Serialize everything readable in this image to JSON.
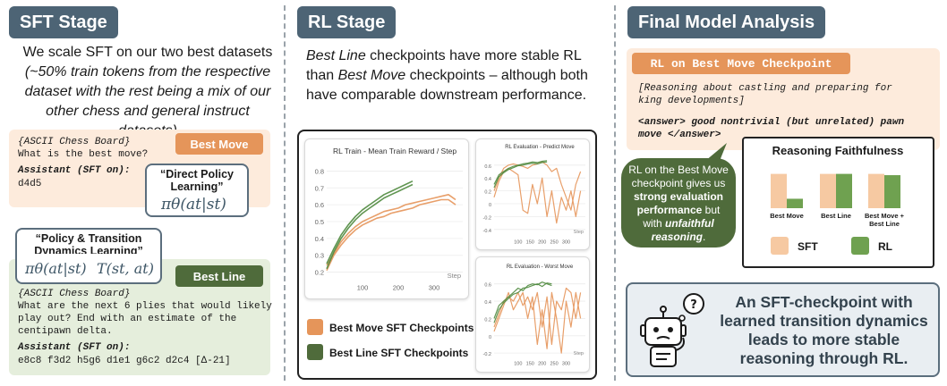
{
  "sft": {
    "header": "SFT Stage",
    "intro_line1": "We scale SFT on our two best datasets",
    "intro_line2": "(~50% train tokens from the respective",
    "intro_line3": "dataset with the rest being a mix of our",
    "intro_line4": "other chess and general instruct datasets)",
    "best_move_card": {
      "tag": "Best Move",
      "line1": "{ASCII Chess Board}",
      "line2": "What is the best move?",
      "assistant": "Assistant (SFT on):",
      "answer": "d4d5"
    },
    "policy_box": {
      "title_line1": "“Direct Policy",
      "title_line2": "Learning”",
      "formula": "πθ(at|st)"
    },
    "dynamics_box": {
      "title_line1": "“Policy & Transition",
      "title_line2": "Dynamics Learning”",
      "formula1": "πθ(at|st)",
      "formula2": "T(st, at)"
    },
    "best_line_card": {
      "tag": "Best Line",
      "line1": "{ASCII Chess Board}",
      "line2": "What are the next 6 plies that would likely",
      "line3": "play out? End with an estimate of the",
      "line4": "centipawn delta.",
      "assistant": "Assistant (SFT on):",
      "answer": "e8c8 f3d2 h5g6 d1e1 g6c2 d2c4 [Δ-21]"
    }
  },
  "rl": {
    "header": "RL Stage",
    "text_em1": "Best Line",
    "text_part1": " checkpoints have more stable RL",
    "text_part2": "than ",
    "text_em2": "Best Move",
    "text_part3": " checkpoints – although both",
    "text_part4": "have comparable downstream performance.",
    "legend": {
      "orange_label": "Best Move SFT Checkpoints",
      "green_label": "Best Line SFT Checkpoints"
    }
  },
  "analysis": {
    "header": "Final Model Analysis",
    "tag": "RL on Best Move Checkpoint",
    "reasoning_line1": "[Reasoning about castling and preparing for",
    "reasoning_line2": "king developments]",
    "answer_line1": "<answer> good nontrivial (but unrelated) pawn",
    "answer_line2": "move </answer>",
    "callout": {
      "line1": "RL on the Best Move",
      "line2": "checkpoint gives us",
      "line3_bold": "strong evaluation",
      "line4_bold": "performance",
      "line4_rest": " but",
      "line5": "with ",
      "line5_em": "unfaithful",
      "line6_em": "reasoning",
      "line6_rest": "."
    },
    "conclusion_line1": "An SFT-checkpoint with",
    "conclusion_line2": "learned transition dynamics",
    "conclusion_line3": "leads to more stable",
    "conclusion_line4": "reasoning through RL."
  },
  "colors": {
    "orange": "#e5955a",
    "green": "#4f8a3e",
    "dark_green": "#4f6b3b",
    "header": "#4d6475"
  },
  "chart_data": [
    {
      "type": "line",
      "title": "RL Train - Mean Train Reward / Step",
      "xlabel": "Step",
      "ylabel": "",
      "xlim": [
        0,
        380
      ],
      "ylim": [
        0.15,
        0.85
      ],
      "xticks": [
        100,
        200,
        300
      ],
      "yticks": [
        0.2,
        0.3,
        0.4,
        0.5,
        0.6,
        0.7,
        0.8
      ],
      "series": [
        {
          "x": [
            0,
            20,
            40,
            60,
            80,
            100,
            120,
            140,
            160,
            180,
            200,
            220,
            240,
            260,
            280,
            300,
            320,
            340,
            360
          ],
          "values": [
            0.21,
            0.3,
            0.36,
            0.41,
            0.45,
            0.48,
            0.5,
            0.52,
            0.53,
            0.55,
            0.56,
            0.57,
            0.58,
            0.6,
            0.61,
            0.62,
            0.63,
            0.63,
            0.6
          ],
          "color": "#e5955a"
        },
        {
          "x": [
            0,
            20,
            40,
            60,
            80,
            100,
            120,
            140,
            160,
            180,
            200,
            220,
            240,
            260,
            280,
            300,
            320,
            340,
            360
          ],
          "values": [
            0.24,
            0.31,
            0.38,
            0.43,
            0.47,
            0.5,
            0.52,
            0.54,
            0.56,
            0.57,
            0.58,
            0.6,
            0.61,
            0.62,
            0.63,
            0.64,
            0.65,
            0.66,
            0.63
          ],
          "color": "#e5955a"
        },
        {
          "x": [
            0,
            20,
            40,
            60,
            80,
            100,
            120,
            140,
            160,
            180,
            200,
            220,
            240
          ],
          "values": [
            0.22,
            0.32,
            0.4,
            0.46,
            0.51,
            0.55,
            0.58,
            0.61,
            0.64,
            0.66,
            0.68,
            0.7,
            0.72
          ],
          "color": "#4f8a3e"
        },
        {
          "x": [
            0,
            20,
            40,
            60,
            80,
            100,
            120,
            140,
            160,
            180,
            200,
            220,
            240
          ],
          "values": [
            0.25,
            0.34,
            0.42,
            0.48,
            0.53,
            0.57,
            0.6,
            0.63,
            0.66,
            0.68,
            0.7,
            0.72,
            0.74
          ],
          "color": "#4f8a3e"
        }
      ]
    },
    {
      "type": "line",
      "title": "RL Evaluation - Predict Move",
      "xlabel": "Step",
      "ylabel": "",
      "xlim": [
        0,
        380
      ],
      "ylim": [
        -0.5,
        0.75
      ],
      "xticks": [
        100,
        150,
        200,
        250,
        300
      ],
      "yticks": [
        -0.4,
        -0.2,
        0,
        0.2,
        0.4,
        0.6
      ],
      "series": [
        {
          "x": [
            0,
            20,
            40,
            60,
            80,
            100,
            120,
            140,
            160,
            180,
            200,
            220,
            240,
            260,
            280,
            300,
            320,
            340,
            360
          ],
          "values": [
            0.1,
            0.35,
            0.5,
            0.55,
            0.5,
            0.45,
            -0.1,
            -0.15,
            0.3,
            0.0,
            0.4,
            -0.2,
            0.2,
            -0.3,
            0.1,
            -0.1,
            0.2,
            -0.2,
            0.2
          ],
          "color": "#e5955a"
        },
        {
          "x": [
            0,
            20,
            40,
            60,
            80,
            100,
            120,
            140,
            160,
            180,
            200,
            220,
            240,
            260,
            280,
            300,
            320,
            340,
            360
          ],
          "values": [
            0.2,
            0.4,
            0.55,
            0.6,
            0.62,
            0.6,
            0.58,
            0.55,
            0.6,
            0.62,
            0.65,
            0.6,
            0.5,
            0.55,
            0.3,
            0.1,
            -0.1,
            0.3,
            0.5
          ],
          "color": "#e5955a"
        },
        {
          "x": [
            0,
            20,
            40,
            60,
            80,
            100,
            120,
            140,
            160,
            180,
            200,
            220
          ],
          "values": [
            0.3,
            0.45,
            0.5,
            0.55,
            0.58,
            0.6,
            0.62,
            0.63,
            0.65,
            0.64,
            0.66,
            0.67
          ],
          "color": "#4f8a3e"
        },
        {
          "x": [
            0,
            20,
            40,
            60,
            80,
            100,
            120,
            140,
            160,
            180,
            200,
            220
          ],
          "values": [
            0.25,
            0.42,
            0.48,
            0.53,
            0.56,
            0.59,
            0.6,
            0.62,
            0.63,
            0.62,
            0.64,
            0.65
          ],
          "color": "#4f8a3e"
        }
      ]
    },
    {
      "type": "line",
      "title": "RL Evaluation - Worst Move",
      "xlabel": "Step",
      "ylabel": "",
      "xlim": [
        0,
        380
      ],
      "ylim": [
        -0.25,
        0.7
      ],
      "xticks": [
        100,
        150,
        200,
        250,
        300
      ],
      "yticks": [
        -0.2,
        0,
        0.2,
        0.4,
        0.6
      ],
      "series": [
        {
          "x": [
            0,
            20,
            40,
            60,
            80,
            100,
            120,
            140,
            160,
            180,
            200,
            220,
            240,
            260,
            280,
            300,
            320,
            340,
            360
          ],
          "values": [
            0.05,
            0.2,
            0.35,
            0.5,
            0.3,
            0.4,
            0.5,
            0.2,
            0.45,
            -0.1,
            0.3,
            -0.15,
            0.5,
            0.2,
            -0.2,
            0.4,
            0.1,
            0.5,
            0.2
          ],
          "color": "#e5955a"
        },
        {
          "x": [
            0,
            20,
            40,
            60,
            80,
            100,
            120,
            140,
            160,
            180,
            200,
            220,
            240,
            260,
            280,
            300,
            320,
            340,
            360
          ],
          "values": [
            0.1,
            0.25,
            0.4,
            0.45,
            0.4,
            0.5,
            0.35,
            0.45,
            0.3,
            0.5,
            0.1,
            0.45,
            -0.1,
            0.4,
            0.3,
            0.55,
            0.5,
            0.2,
            0.5
          ],
          "color": "#e5955a"
        },
        {
          "x": [
            0,
            20,
            40,
            60,
            80,
            100,
            120,
            140,
            160,
            180,
            200,
            220,
            240
          ],
          "values": [
            0.2,
            0.35,
            0.4,
            0.45,
            0.5,
            0.55,
            0.52,
            0.58,
            0.6,
            0.59,
            0.62,
            0.6,
            0.58
          ],
          "color": "#4f8a3e"
        },
        {
          "x": [
            0,
            20,
            40,
            60,
            80,
            100,
            120,
            140,
            160,
            180,
            200,
            220,
            240
          ],
          "values": [
            0.15,
            0.3,
            0.38,
            0.43,
            0.48,
            0.5,
            0.55,
            0.56,
            0.58,
            0.6,
            0.57,
            0.61,
            0.6
          ],
          "color": "#4f8a3e"
        }
      ]
    },
    {
      "type": "bar",
      "title": "Reasoning Faithfulness",
      "categories": [
        "Best Move",
        "Best Line",
        "Best Move + Best Line"
      ],
      "series": [
        {
          "name": "SFT",
          "values": [
            0.8,
            0.8,
            0.8
          ],
          "color": "#f6c9a2"
        },
        {
          "name": "RL",
          "values": [
            0.22,
            0.8,
            0.77
          ],
          "color": "#6fa150"
        }
      ],
      "ylim": [
        0,
        1
      ],
      "xlabel": "",
      "ylabel": "",
      "legend": "bottom"
    }
  ]
}
